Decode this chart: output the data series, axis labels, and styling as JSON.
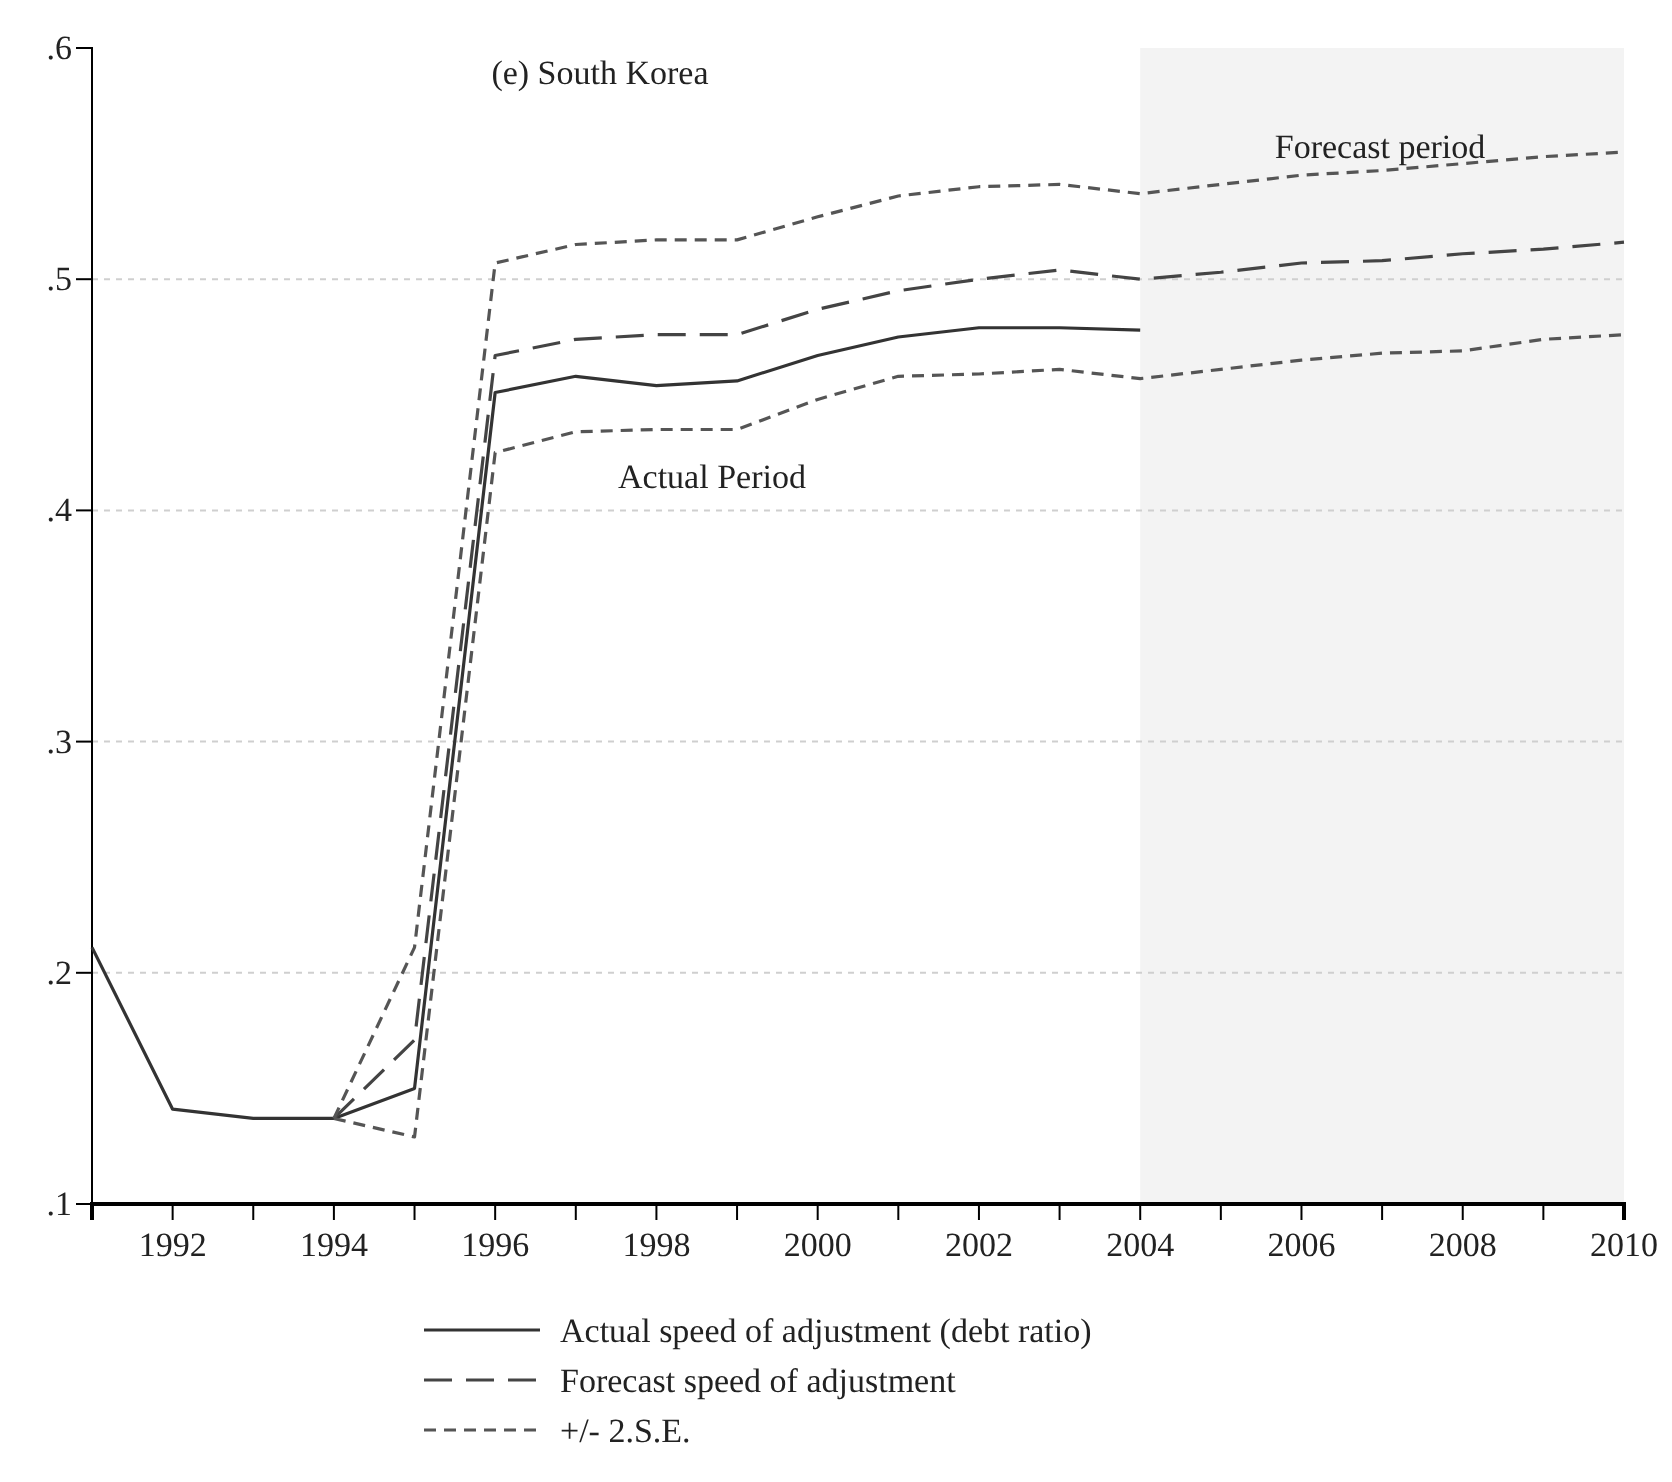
{
  "chart_data": {
    "type": "line",
    "title": "(e) South Korea",
    "xlim": [
      1991,
      2010
    ],
    "xticks": [
      {
        "value": 1991,
        "label": null
      },
      1992,
      {
        "value": 1993,
        "label": null
      },
      1994,
      {
        "value": 1995,
        "label": null
      },
      1996,
      {
        "value": 1997,
        "label": null
      },
      1998,
      {
        "value": 1999,
        "label": null
      },
      2000,
      {
        "value": 2001,
        "label": null
      },
      2002,
      {
        "value": 2003,
        "label": null
      },
      2004,
      {
        "value": 2005,
        "label": null
      },
      2006,
      {
        "value": 2007,
        "label": null
      },
      2008,
      {
        "value": 2009,
        "label": null
      },
      2010
    ],
    "ylim": [
      0.1,
      0.6
    ],
    "yticks": [
      {
        "value": 0.1,
        "label": ".1"
      },
      {
        "value": 0.2,
        "label": ".2"
      },
      {
        "value": 0.3,
        "label": ".3"
      },
      {
        "value": 0.4,
        "label": ".4"
      },
      {
        "value": 0.5,
        "label": ".5"
      },
      {
        "value": 0.6,
        "label": ".6"
      }
    ],
    "grid": "y",
    "legend": "bottom",
    "bands": [
      {
        "axis": "x",
        "from": 2004,
        "to": 2010,
        "color": "#f3f3f3"
      }
    ],
    "annotations": [
      "Actual Period",
      "Forecast period"
    ],
    "series": [
      {
        "name": "Actual speed of adjustment (debt ratio)",
        "color": "#333333",
        "line_style": "solid",
        "x": [
          1991,
          1992,
          1993,
          1994,
          1995,
          1996,
          1997,
          1998,
          1999,
          2000,
          2001,
          2002,
          2003,
          2004
        ],
        "values": [
          0.211,
          0.141,
          0.137,
          0.137,
          0.15,
          0.451,
          0.458,
          0.454,
          0.456,
          0.467,
          0.475,
          0.479,
          0.479,
          0.478
        ]
      },
      {
        "name": "Forecast speed of adjustment",
        "color": "#444444",
        "line_style": "dashed",
        "x": [
          1994,
          1995,
          1996,
          1997,
          1998,
          1999,
          2000,
          2001,
          2002,
          2003,
          2004,
          2005,
          2006,
          2007,
          2008,
          2009,
          2010
        ],
        "values": [
          0.137,
          0.171,
          0.467,
          0.474,
          0.476,
          0.476,
          0.487,
          0.495,
          0.5,
          0.504,
          0.5,
          0.503,
          0.507,
          0.508,
          0.511,
          0.513,
          0.516
        ]
      },
      {
        "name": "+/- 2.S.E.",
        "color": "#555555",
        "line_style": "dotted",
        "x": [
          1994,
          1995,
          1996,
          1997,
          1998,
          1999,
          2000,
          2001,
          2002,
          2003,
          2004,
          2005,
          2006,
          2007,
          2008,
          2009,
          2010
        ],
        "values": [
          0.137,
          0.211,
          0.507,
          0.515,
          0.517,
          0.517,
          0.527,
          0.536,
          0.54,
          0.541,
          0.537,
          0.541,
          0.545,
          0.547,
          0.55,
          0.553,
          0.555
        ]
      },
      {
        "color": "#555555",
        "line_style": "dotted",
        "x": [
          1994,
          1995,
          1996,
          1997,
          1998,
          1999,
          2000,
          2001,
          2002,
          2003,
          2004,
          2005,
          2006,
          2007,
          2008,
          2009,
          2010
        ],
        "values": [
          0.137,
          0.129,
          0.425,
          0.434,
          0.435,
          0.435,
          0.448,
          0.458,
          0.459,
          0.461,
          0.457,
          0.461,
          0.465,
          0.468,
          0.469,
          0.474,
          0.476
        ]
      }
    ]
  }
}
